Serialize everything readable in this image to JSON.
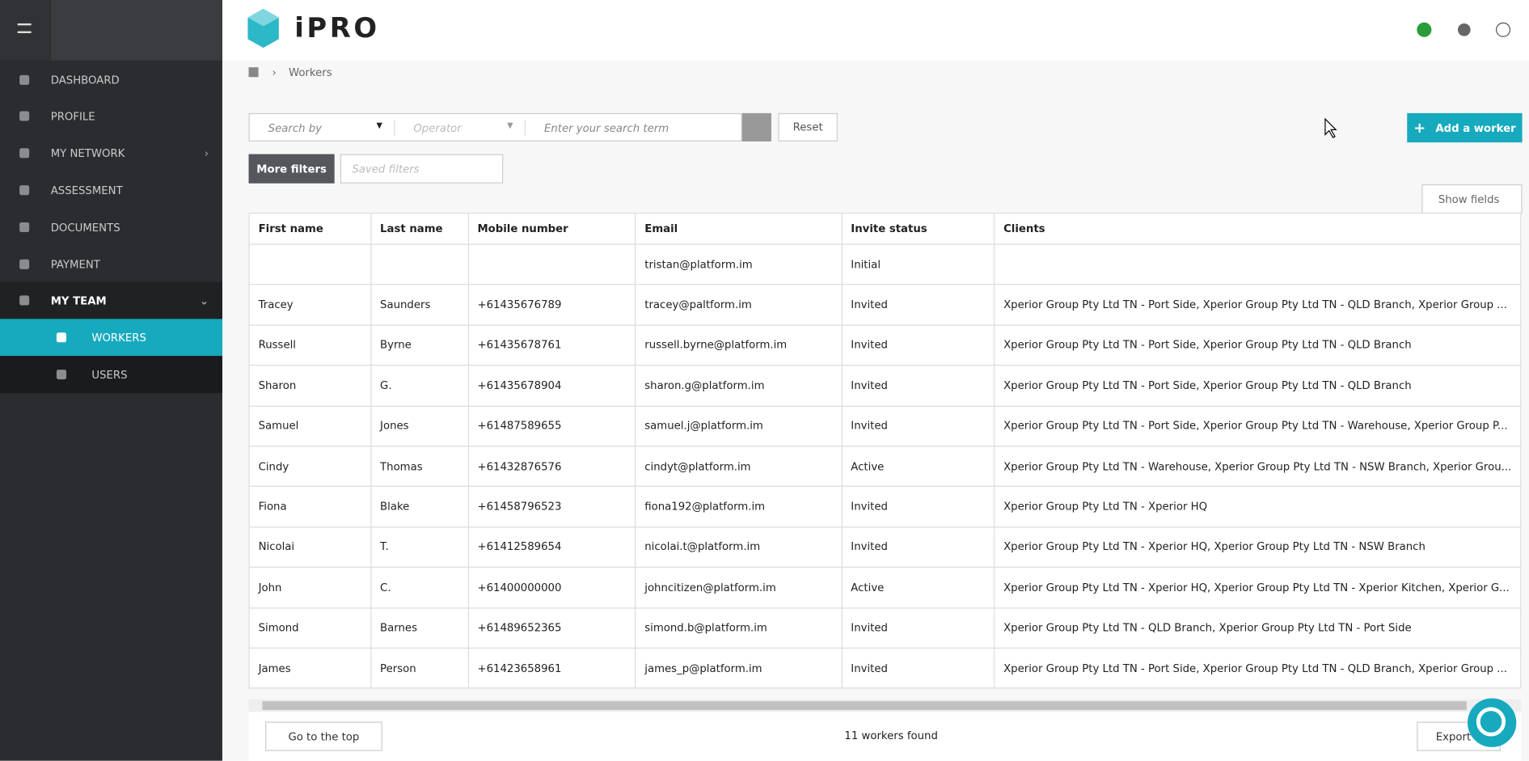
{
  "header": {
    "logo": "iPRO"
  },
  "sidebar": {
    "items": [
      "DASHBOARD",
      "PROFILE",
      "MY NETWORK",
      "ASSESSMENT",
      "DOCUMENTS",
      "PAYMENT",
      "MY TEAM"
    ],
    "sub_items": [
      "WORKERS",
      "USERS"
    ]
  },
  "breadcrumb": "Workers",
  "filters": {
    "search_by": "Search by",
    "operator": "Operator",
    "search_placeholder": "Enter your search term",
    "reset": "Reset",
    "more_filters": "More filters",
    "saved_filters": "Saved filters",
    "add_worker": "Add a worker",
    "show_fields": "Show fields"
  },
  "table": {
    "columns": [
      "First name",
      "Last name",
      "Mobile number",
      "Email",
      "Invite status",
      "Clients"
    ],
    "rows": [
      [
        "",
        "",
        "",
        "tristan@platform.im",
        "Initial",
        ""
      ],
      [
        "Tracey",
        "Saunders",
        "+61435676789",
        "tracey@paltform.im",
        "Invited",
        "Xperior Group Pty Ltd TN - Port Side, Xperior Group Pty Ltd TN - QLD Branch, Xperior Group ..."
      ],
      [
        "Russell",
        "Byrne",
        "+61435678761",
        "russell.byrne@platform.im",
        "Invited",
        "Xperior Group Pty Ltd TN - Port Side, Xperior Group Pty Ltd TN - QLD Branch"
      ],
      [
        "Sharon",
        "G.",
        "+61435678904",
        "sharon.g@platform.im",
        "Invited",
        "Xperior Group Pty Ltd TN - Port Side, Xperior Group Pty Ltd TN - QLD Branch"
      ],
      [
        "Samuel",
        "Jones",
        "+61487589655",
        "samuel.j@platform.im",
        "Invited",
        "Xperior Group Pty Ltd TN - Port Side, Xperior Group Pty Ltd TN - Warehouse, Xperior Group P..."
      ],
      [
        "Cindy",
        "Thomas",
        "+61432876576",
        "cindyt@platform.im",
        "Active",
        "Xperior Group Pty Ltd TN - Warehouse, Xperior Group Pty Ltd TN - NSW Branch, Xperior Grou..."
      ],
      [
        "Fiona",
        "Blake",
        "+61458796523",
        "fiona192@platform.im",
        "Invited",
        "Xperior Group Pty Ltd TN - Xperior HQ"
      ],
      [
        "Nicolai",
        "T.",
        "+61412589654",
        "nicolai.t@platform.im",
        "Invited",
        "Xperior Group Pty Ltd TN - Xperior HQ, Xperior Group Pty Ltd TN - NSW Branch"
      ],
      [
        "John",
        "C.",
        "+61400000000",
        "johncitizen@platform.im",
        "Active",
        "Xperior Group Pty Ltd TN - Xperior HQ, Xperior Group Pty Ltd TN - Xperior Kitchen, Xperior G..."
      ],
      [
        "Simond",
        "Barnes",
        "+61489652365",
        "simond.b@platform.im",
        "Invited",
        "Xperior Group Pty Ltd TN - QLD Branch, Xperior Group Pty Ltd TN - Port Side"
      ],
      [
        "James",
        "Person",
        "+61423658961",
        "james_p@platform.im",
        "Invited",
        "Xperior Group Pty Ltd TN - Port Side, Xperior Group Pty Ltd TN - QLD Branch, Xperior Group ..."
      ]
    ]
  },
  "footer": {
    "go_top": "Go to the top",
    "count": "11 workers found",
    "export": "Export C"
  }
}
